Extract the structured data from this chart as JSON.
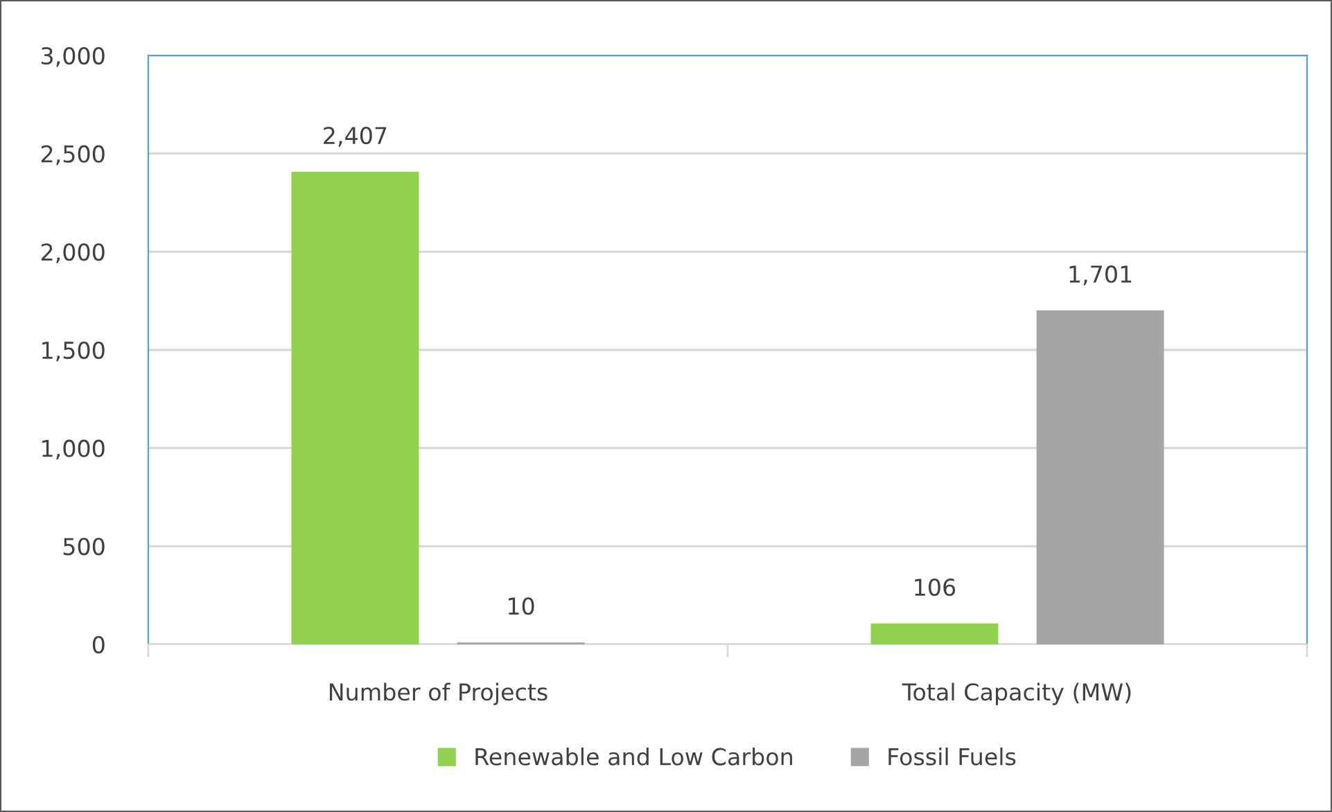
{
  "chart_data": {
    "type": "bar",
    "categories": [
      "Number of Projects",
      "Total Capacity (MW)"
    ],
    "series": [
      {
        "name": "Renewable and Low Carbon",
        "color": "#92d050",
        "values": [
          2407,
          106
        ],
        "value_labels": [
          "2,407",
          "106"
        ]
      },
      {
        "name": "Fossil Fuels",
        "color": "#a5a5a5",
        "values": [
          10,
          1701
        ],
        "value_labels": [
          "10",
          "1,701"
        ]
      }
    ],
    "ylim": [
      0,
      3000
    ],
    "yticks": [
      {
        "value": 0,
        "label": "0"
      },
      {
        "value": 500,
        "label": "500"
      },
      {
        "value": 1000,
        "label": "1,000"
      },
      {
        "value": 1500,
        "label": "1,500"
      },
      {
        "value": 2000,
        "label": "2,000"
      },
      {
        "value": 2500,
        "label": "2,500"
      },
      {
        "value": 3000,
        "label": "3,000"
      }
    ],
    "grid": "y",
    "legend": "bottom"
  }
}
